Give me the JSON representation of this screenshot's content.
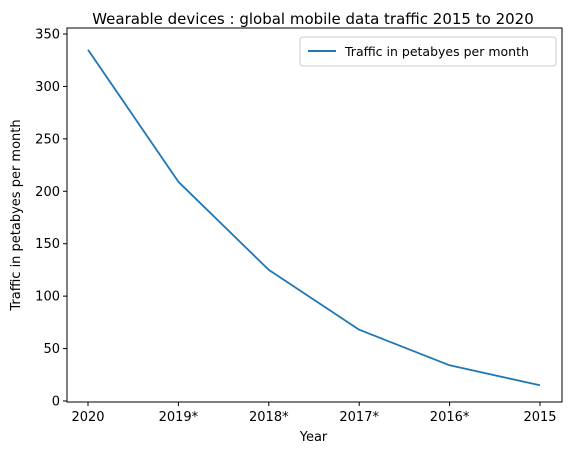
{
  "chart_data": {
    "type": "line",
    "title": "Wearable devices : global mobile data traffic 2015 to 2020",
    "xlabel": "Year",
    "ylabel": "Traffic in petabyes per month",
    "categories": [
      "2020",
      "2019*",
      "2018*",
      "2017*",
      "2016*",
      "2015"
    ],
    "series": [
      {
        "name": "Traffic in petabyes per month",
        "values": [
          335,
          209,
          125,
          68,
          34,
          15
        ],
        "color": "#1f77b4"
      }
    ],
    "ylim": [
      0,
      350
    ],
    "yticks": [
      0,
      50,
      100,
      150,
      200,
      250,
      300,
      350
    ],
    "grid": false,
    "legend_position": "top-right"
  }
}
